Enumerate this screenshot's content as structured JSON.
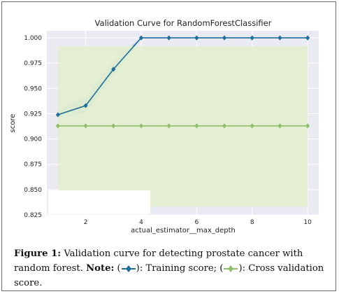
{
  "colors": {
    "train": "#1f6f9a",
    "train_band": "#8cc5cf",
    "cv": "#8fbf6a",
    "cv_band": "#e3eecf",
    "axes_bg": "#eaeaf2",
    "grid": "#ffffff"
  },
  "chart_data": {
    "type": "line",
    "title": "Validation Curve for RandomForestClassifier",
    "xlabel": "actual_estimator__max_depth",
    "ylabel": "score",
    "xlim": [
      0.6,
      10.4
    ],
    "ylim": [
      0.825,
      1.007
    ],
    "xticks": [
      2,
      4,
      6,
      8,
      10
    ],
    "yticks": [
      0.825,
      0.85,
      0.875,
      0.9,
      0.925,
      0.95,
      0.975,
      1.0
    ],
    "ytick_labels": [
      "0.825",
      "0.850",
      "0.875",
      "0.900",
      "0.925",
      "0.950",
      "0.975",
      "1.000"
    ],
    "grid": true,
    "x": [
      1,
      2,
      3,
      4,
      5,
      6,
      7,
      8,
      9,
      10
    ],
    "series": [
      {
        "key": "train",
        "values": [
          0.924,
          0.933,
          0.969,
          1.0,
          1.0,
          1.0,
          1.0,
          1.0,
          1.0,
          1.0
        ],
        "band_low": [
          0.921,
          0.926,
          0.963,
          1.0,
          1.0,
          1.0,
          1.0,
          1.0,
          1.0,
          1.0
        ],
        "band_high": [
          0.929,
          0.941,
          0.977,
          1.0,
          1.0,
          1.0,
          1.0,
          1.0,
          1.0,
          1.0
        ]
      },
      {
        "key": "cv",
        "values": [
          0.913,
          0.913,
          0.913,
          0.913,
          0.913,
          0.913,
          0.913,
          0.913,
          0.913,
          0.913
        ],
        "band_low": [
          0.847,
          0.847,
          0.847,
          0.847,
          0.833,
          0.833,
          0.833,
          0.833,
          0.833,
          0.833
        ],
        "band_high": [
          0.992,
          0.992,
          0.992,
          0.992,
          0.992,
          0.992,
          0.992,
          0.992,
          0.992,
          0.992
        ]
      }
    ]
  },
  "caption": {
    "figure_label": "Figure 1:",
    "text": " Validation curve for detecting prostate cancer with random forest. ",
    "note_label": "Note:",
    "open1": " (",
    "train_text": "): Training score; (",
    "cv_text": "): Cross validation score."
  }
}
